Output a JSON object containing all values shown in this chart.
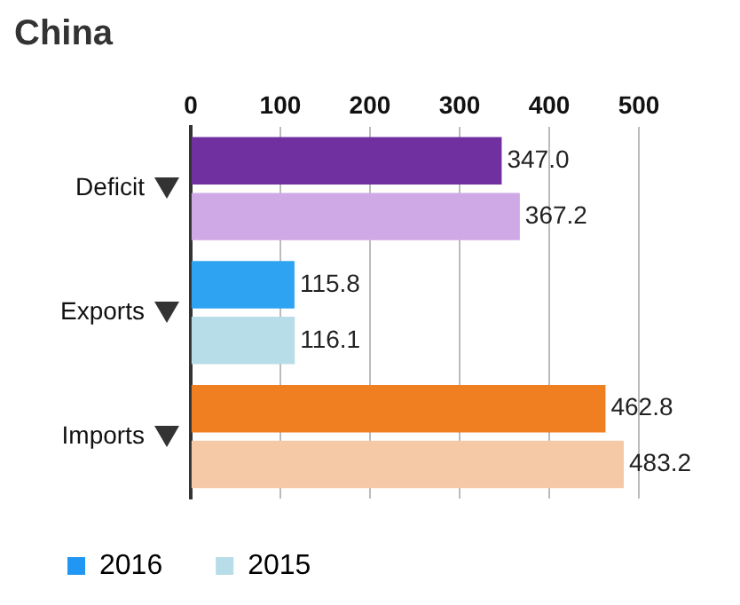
{
  "chart_data": {
    "type": "bar",
    "orientation": "horizontal",
    "title": "China",
    "categories": [
      "Deficit",
      "Exports",
      "Imports"
    ],
    "series": [
      {
        "name": "2016",
        "color": "#2196f3",
        "colors": [
          "#7030a0",
          "#2ea3f2",
          "#f07f22"
        ],
        "values": [
          347.0,
          115.8,
          462.8
        ],
        "value_labels": [
          "347.0",
          "115.8",
          "462.8"
        ]
      },
      {
        "name": "2015",
        "color": "#b7dde8",
        "colors": [
          "#cfa9e6",
          "#b7dde8",
          "#f5c9a6"
        ],
        "values": [
          367.2,
          116.1,
          483.2
        ],
        "value_labels": [
          "367.2",
          "116.1",
          "483.2"
        ]
      }
    ],
    "xlim": [
      0,
      500
    ],
    "xticks": [
      0,
      100,
      200,
      300,
      400,
      500
    ],
    "grid": "x",
    "legend": "bottom"
  }
}
